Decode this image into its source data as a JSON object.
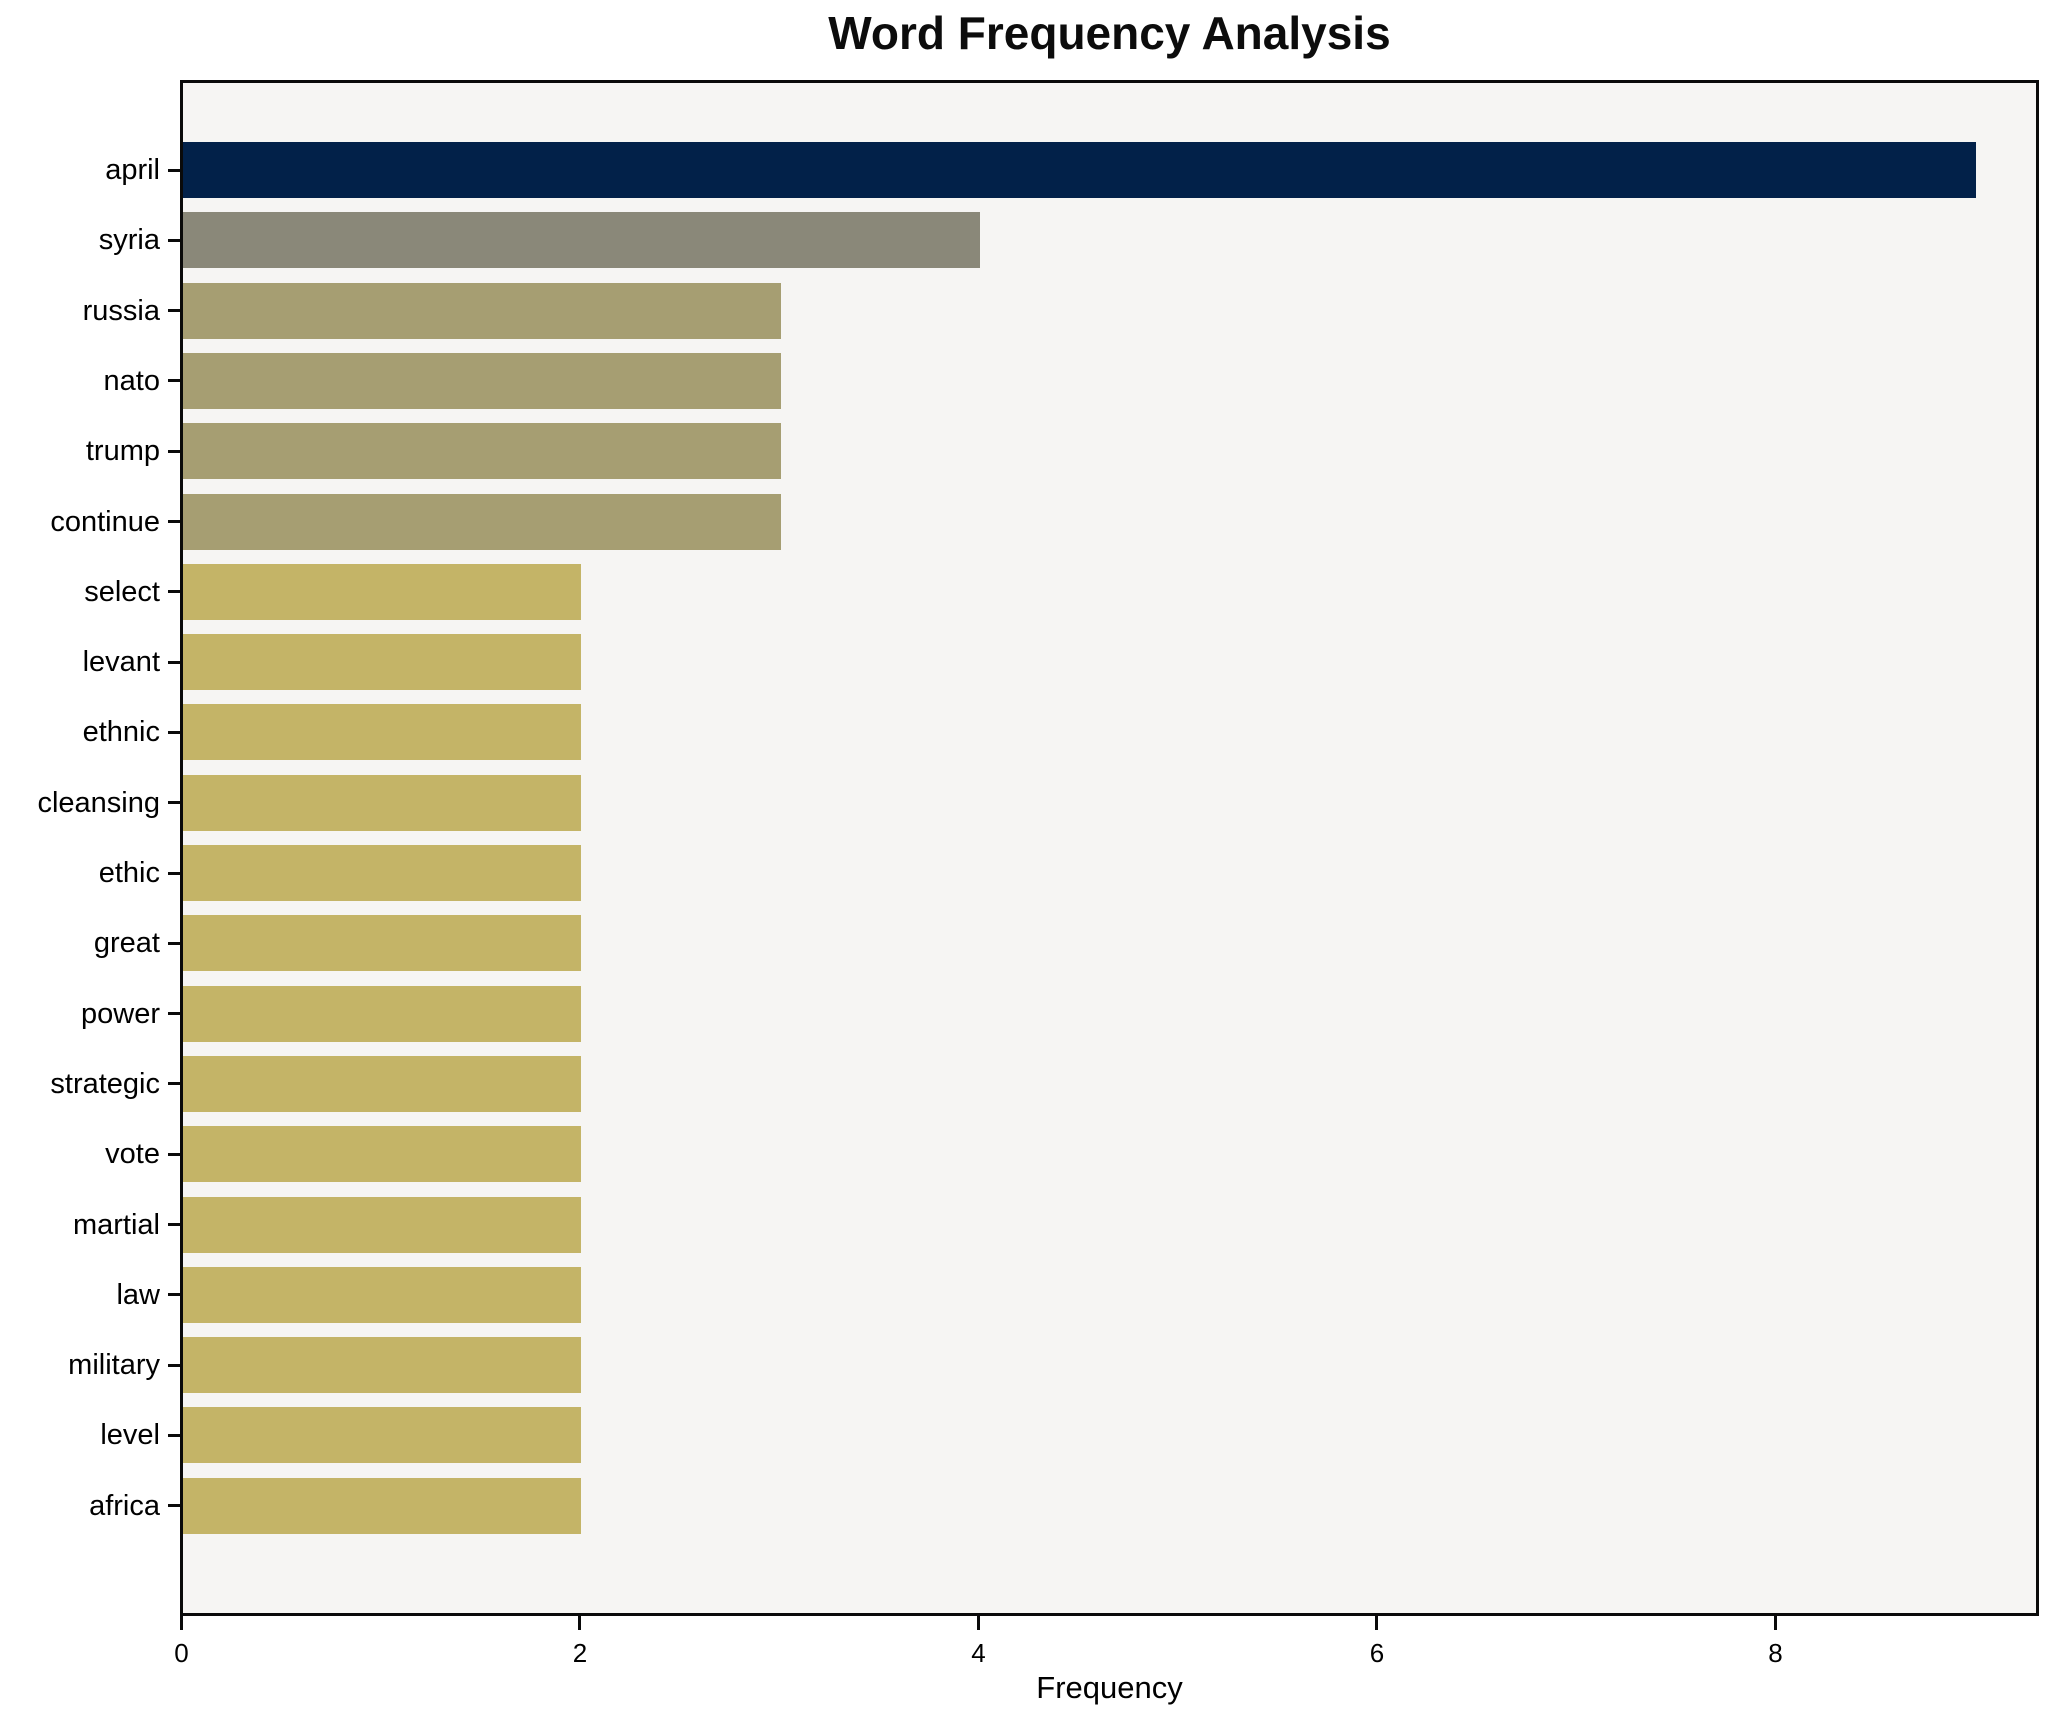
{
  "chart_data": {
    "type": "bar",
    "orientation": "horizontal",
    "title": "Word Frequency Analysis",
    "xlabel": "Frequency",
    "ylabel": "",
    "categories": [
      "april",
      "syria",
      "russia",
      "nato",
      "trump",
      "continue",
      "select",
      "levant",
      "ethnic",
      "cleansing",
      "ethic",
      "great",
      "power",
      "strategic",
      "vote",
      "martial",
      "law",
      "military",
      "level",
      "africa"
    ],
    "values": [
      9,
      4,
      3,
      3,
      3,
      3,
      2,
      2,
      2,
      2,
      2,
      2,
      2,
      2,
      2,
      2,
      2,
      2,
      2,
      2
    ],
    "bar_colors": [
      "#022149",
      "#8A8879",
      "#A69E72",
      "#A69E72",
      "#A69E72",
      "#A69E72",
      "#C4B467",
      "#C4B467",
      "#C4B467",
      "#C4B467",
      "#C4B467",
      "#C4B467",
      "#C4B467",
      "#C4B467",
      "#C4B467",
      "#C4B467",
      "#C4B467",
      "#C4B467",
      "#C4B467",
      "#C4B467"
    ],
    "x_ticks": [
      0,
      2,
      4,
      6,
      8
    ],
    "xlim": [
      0,
      9.3
    ],
    "grid": false,
    "legend": "none",
    "colors": {
      "max_value_bar": "#022149",
      "high_value_bar": "#8A8879",
      "mid_value_bar": "#A69E72",
      "low_value_bar": "#C4B467",
      "plot_background": "#F6F5F3",
      "figure_background": "#FFFFFF",
      "spine": "#0A0A0A",
      "text": "#000000"
    }
  }
}
